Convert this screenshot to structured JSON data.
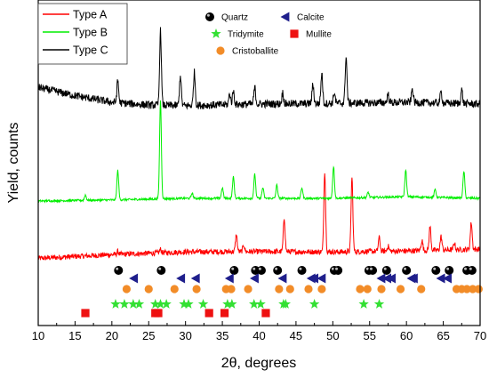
{
  "chart_data": {
    "type": "line",
    "xlabel": "2θ, degrees",
    "ylabel": "Yield, counts",
    "xlim": [
      10,
      70
    ],
    "xticks": [
      10,
      15,
      20,
      25,
      30,
      35,
      40,
      45,
      50,
      55,
      60,
      65,
      70
    ],
    "legend_position": "top-left",
    "series": [
      {
        "name": "Type A",
        "color": "#ff0000",
        "level": "bottom",
        "baseline": [
          [
            10,
            0.33
          ],
          [
            20,
            0.44
          ],
          [
            30,
            0.52
          ],
          [
            40,
            0.53
          ],
          [
            50,
            0.52
          ],
          [
            60,
            0.55
          ],
          [
            70,
            0.6
          ]
        ],
        "peaks": [
          [
            20.8,
            0.08
          ],
          [
            26.6,
            0.1
          ],
          [
            36.9,
            0.5
          ],
          [
            37.9,
            0.2
          ],
          [
            43.4,
            1.0
          ],
          [
            48.9,
            2.4
          ],
          [
            52.6,
            2.2
          ],
          [
            56.3,
            0.4
          ],
          [
            57.5,
            0.15
          ],
          [
            62.1,
            0.3
          ],
          [
            63.2,
            0.7
          ],
          [
            64.7,
            0.4
          ],
          [
            66.5,
            0.2
          ],
          [
            68.8,
            0.8
          ]
        ]
      },
      {
        "name": "Type B",
        "color": "#00ee00",
        "level": "middle",
        "baseline": [
          [
            10,
            0.0
          ],
          [
            20,
            0.02
          ],
          [
            30,
            0.05
          ],
          [
            40,
            0.05
          ],
          [
            50,
            0.05
          ],
          [
            60,
            0.08
          ],
          [
            70,
            0.05
          ]
        ],
        "peaks": [
          [
            16.4,
            0.1
          ],
          [
            20.8,
            0.55
          ],
          [
            26.6,
            1.85
          ],
          [
            30.9,
            0.1
          ],
          [
            35.0,
            0.2
          ],
          [
            36.5,
            0.4
          ],
          [
            39.4,
            0.45
          ],
          [
            40.5,
            0.2
          ],
          [
            42.4,
            0.25
          ],
          [
            45.8,
            0.2
          ],
          [
            50.1,
            0.6
          ],
          [
            54.8,
            0.1
          ],
          [
            59.9,
            0.5
          ],
          [
            63.9,
            0.15
          ],
          [
            67.8,
            0.5
          ]
        ]
      },
      {
        "name": "Type C",
        "color": "#000000",
        "level": "top",
        "baseline": [
          [
            10,
            0.35
          ],
          [
            15,
            0.2
          ],
          [
            20,
            0.08
          ],
          [
            25,
            0.03
          ],
          [
            30,
            0.02
          ],
          [
            40,
            0.05
          ],
          [
            50,
            0.06
          ],
          [
            60,
            0.08
          ],
          [
            70,
            0.05
          ]
        ],
        "peaks": [
          [
            20.8,
            0.4
          ],
          [
            26.6,
            1.35
          ],
          [
            29.3,
            0.55
          ],
          [
            31.2,
            0.6
          ],
          [
            36.0,
            0.2
          ],
          [
            36.5,
            0.25
          ],
          [
            39.4,
            0.3
          ],
          [
            43.2,
            0.2
          ],
          [
            47.3,
            0.35
          ],
          [
            48.5,
            0.55
          ],
          [
            50.2,
            0.2
          ],
          [
            51.8,
            0.85
          ],
          [
            57.5,
            0.15
          ],
          [
            60.8,
            0.25
          ],
          [
            64.7,
            0.2
          ],
          [
            67.5,
            0.25
          ]
        ]
      }
    ],
    "phases": [
      {
        "name": "Quartz",
        "marker": "sphere",
        "color": "#000000",
        "row": 1,
        "positions": [
          20.9,
          26.7,
          36.6,
          39.5,
          40.3,
          42.5,
          45.8,
          50.2,
          50.7,
          54.9,
          55.4,
          57.3,
          60.0,
          64.0,
          65.8,
          68.2,
          68.9
        ]
      },
      {
        "name": "Calcite",
        "marker": "triangle-left",
        "color": "#1f1f8c",
        "row": 2,
        "positions": [
          23.0,
          29.4,
          31.4,
          36.0,
          39.4,
          43.2,
          47.1,
          47.5,
          48.5,
          56.6,
          57.4,
          58.0,
          60.7,
          61.0,
          64.7,
          65.6
        ]
      },
      {
        "name": "Cristoballite",
        "marker": "circle",
        "color": "#f28c28",
        "row": 3,
        "positions": [
          22.0,
          25.0,
          28.5,
          31.5,
          35.5,
          36.2,
          38.5,
          42.7,
          44.2,
          46.7,
          48.5,
          53.7,
          54.7,
          56.6,
          59.2,
          62.0,
          66.8,
          67.5,
          68.2,
          69.0,
          69.8
        ]
      },
      {
        "name": "Tridymite",
        "marker": "star",
        "color": "#33e033",
        "row": 4,
        "positions": [
          20.5,
          21.7,
          22.9,
          23.7,
          25.9,
          26.6,
          27.4,
          29.8,
          30.4,
          32.4,
          35.7,
          36.3,
          39.3,
          40.2,
          43.3,
          43.6,
          47.5,
          54.2,
          56.3
        ]
      },
      {
        "name": "Mullite",
        "marker": "square",
        "color": "#ee1111",
        "row": 5,
        "positions": [
          16.4,
          25.9,
          26.3,
          33.2,
          35.3,
          40.9
        ]
      }
    ]
  }
}
